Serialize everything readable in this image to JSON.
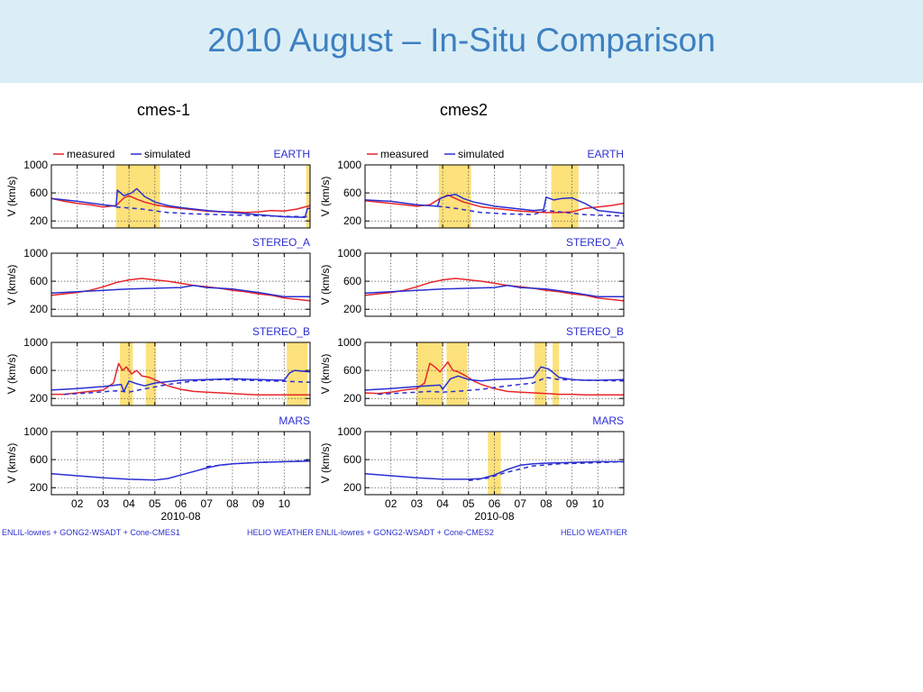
{
  "title": "2010 August – In-Situ Comparison",
  "columns": [
    {
      "heading": "cmes-1",
      "footer_left": "ENLIL-lowres + GONG2-WSADT + Cone-CMES1",
      "footer_right": "HELIO  WEATHER"
    },
    {
      "heading": "cmes2",
      "footer_left": "ENLIL-lowres + GONG2-WSADT + Cone-CMES2",
      "footer_right": "HELIO  WEATHER"
    }
  ],
  "legend": {
    "measured": "measured",
    "simulated": "simulated"
  },
  "colors": {
    "measured": "#e8262a",
    "simulated": "#2b2fd0",
    "highlight": "#fde17a",
    "label": "#2b2fd0"
  },
  "chart_data": [
    {
      "type": "line",
      "column": "cmes-1",
      "panel": "EARTH",
      "ylabel": "V (km/s)",
      "xlim": [
        1,
        11
      ],
      "ylim": [
        100,
        1000
      ],
      "yticks": [
        200,
        600,
        1000
      ],
      "xticks": [
        "02",
        "03",
        "04",
        "05",
        "06",
        "07",
        "08",
        "09",
        "10"
      ],
      "xlabel": "2010-08",
      "highlight_ranges": [
        [
          3.5,
          5.2
        ],
        [
          10.85,
          11.0
        ]
      ],
      "series": [
        {
          "name": "measured",
          "style": "solid",
          "x": [
            1,
            1.5,
            2,
            2.5,
            3,
            3.5,
            3.8,
            4,
            4.3,
            4.6,
            5,
            5.5,
            6,
            6.5,
            7,
            7.5,
            8,
            8.5,
            9,
            9.5,
            10,
            10.5,
            11
          ],
          "y": [
            520,
            480,
            450,
            430,
            400,
            420,
            530,
            560,
            510,
            470,
            430,
            400,
            380,
            360,
            340,
            330,
            330,
            320,
            330,
            350,
            340,
            370,
            420
          ]
        },
        {
          "name": "simulated",
          "style": "solid",
          "x": [
            1,
            2,
            3,
            3.5,
            3.55,
            3.8,
            4.1,
            4.3,
            4.6,
            5,
            5.5,
            6,
            7,
            8,
            9,
            10,
            10.8,
            10.9,
            11
          ],
          "y": [
            520,
            480,
            430,
            410,
            640,
            560,
            600,
            660,
            550,
            470,
            420,
            390,
            350,
            320,
            290,
            260,
            250,
            380,
            380
          ]
        },
        {
          "name": "simulated",
          "style": "dashed",
          "x": [
            3.5,
            4.5,
            5.5,
            6.5,
            7.5,
            8.5,
            9.5,
            11
          ],
          "y": [
            400,
            370,
            320,
            300,
            290,
            280,
            270,
            260
          ]
        }
      ]
    },
    {
      "type": "line",
      "column": "cmes-1",
      "panel": "STEREO_A",
      "ylabel": "V (km/s)",
      "xlim": [
        1,
        11
      ],
      "ylim": [
        100,
        1000
      ],
      "yticks": [
        200,
        600,
        1000
      ],
      "xticks": [
        "02",
        "03",
        "04",
        "05",
        "06",
        "07",
        "08",
        "09",
        "10"
      ],
      "xlabel": "2010-08",
      "highlight_ranges": [],
      "series": [
        {
          "name": "measured",
          "style": "solid",
          "x": [
            1,
            1.5,
            2,
            2.5,
            3,
            3.5,
            4,
            4.5,
            5,
            5.5,
            6,
            6.5,
            7,
            7.5,
            8,
            8.5,
            9,
            9.5,
            10,
            10.5,
            11
          ],
          "y": [
            400,
            420,
            440,
            470,
            520,
            580,
            620,
            640,
            620,
            600,
            570,
            540,
            520,
            500,
            470,
            450,
            420,
            400,
            360,
            340,
            320
          ]
        },
        {
          "name": "simulated",
          "style": "solid",
          "x": [
            1,
            2,
            3,
            4,
            5,
            6,
            6.5,
            7,
            8,
            9,
            10,
            11
          ],
          "y": [
            430,
            450,
            470,
            490,
            500,
            510,
            540,
            510,
            490,
            440,
            380,
            380
          ]
        }
      ]
    },
    {
      "type": "line",
      "column": "cmes-1",
      "panel": "STEREO_B",
      "ylabel": "V (km/s)",
      "xlim": [
        1,
        11
      ],
      "ylim": [
        100,
        1000
      ],
      "yticks": [
        200,
        600,
        1000
      ],
      "xticks": [
        "02",
        "03",
        "04",
        "05",
        "06",
        "07",
        "08",
        "09",
        "10"
      ],
      "xlabel": "2010-08",
      "highlight_ranges": [
        [
          3.65,
          4.15
        ],
        [
          4.65,
          5.05
        ],
        [
          10.1,
          10.9
        ]
      ],
      "series": [
        {
          "name": "measured",
          "style": "solid",
          "x": [
            1,
            1.5,
            2,
            2.5,
            3,
            3.4,
            3.6,
            3.75,
            3.9,
            4.1,
            4.3,
            4.5,
            4.8,
            5.1,
            5.5,
            6,
            6.5,
            7,
            7.5,
            8,
            8.5,
            9,
            9.5,
            10,
            10.5,
            11
          ],
          "y": [
            260,
            260,
            280,
            300,
            320,
            420,
            700,
            600,
            650,
            550,
            600,
            520,
            500,
            450,
            380,
            330,
            300,
            290,
            280,
            270,
            260,
            250,
            250,
            250,
            250,
            250
          ]
        },
        {
          "name": "simulated",
          "style": "solid",
          "x": [
            1,
            2,
            3,
            3.7,
            3.8,
            4,
            4.3,
            4.6,
            5,
            6,
            7,
            8,
            9,
            10,
            10.2,
            10.4,
            11
          ],
          "y": [
            320,
            340,
            370,
            400,
            300,
            450,
            410,
            380,
            420,
            460,
            470,
            480,
            470,
            460,
            560,
            600,
            580
          ]
        },
        {
          "name": "simulated",
          "style": "dashed",
          "x": [
            1.5,
            2.5,
            3.5,
            4,
            4.5,
            5.5,
            6.5,
            7.5,
            8.5,
            9.5,
            10.5,
            11
          ],
          "y": [
            260,
            280,
            310,
            290,
            330,
            400,
            450,
            470,
            460,
            450,
            440,
            430
          ]
        }
      ]
    },
    {
      "type": "line",
      "column": "cmes-1",
      "panel": "MARS",
      "ylabel": "V (km/s)",
      "xlim": [
        1,
        11
      ],
      "ylim": [
        100,
        1000
      ],
      "yticks": [
        200,
        600,
        1000
      ],
      "xticks": [
        "02",
        "03",
        "04",
        "05",
        "06",
        "07",
        "08",
        "09",
        "10"
      ],
      "xlabel": "2010-08",
      "highlight_ranges": [],
      "series": [
        {
          "name": "simulated",
          "style": "solid",
          "x": [
            1,
            2,
            3,
            4,
            5,
            5.5,
            6,
            6.5,
            7,
            7.5,
            8,
            8.5,
            9,
            10,
            11
          ],
          "y": [
            400,
            370,
            340,
            320,
            310,
            330,
            380,
            430,
            480,
            520,
            540,
            550,
            560,
            570,
            580
          ]
        },
        {
          "name": "simulated",
          "style": "dashed",
          "x": [
            7,
            8,
            9,
            10,
            11
          ],
          "y": [
            500,
            540,
            560,
            570,
            590
          ]
        }
      ]
    },
    {
      "type": "line",
      "column": "cmes2",
      "panel": "EARTH",
      "ylabel": "V (km/s)",
      "xlim": [
        1,
        11
      ],
      "ylim": [
        100,
        1000
      ],
      "yticks": [
        200,
        600,
        1000
      ],
      "xticks": [
        "02",
        "03",
        "04",
        "05",
        "06",
        "07",
        "08",
        "09",
        "10"
      ],
      "xlabel": "2010-08",
      "highlight_ranges": [
        [
          3.85,
          5.1
        ],
        [
          8.2,
          9.25
        ]
      ],
      "series": [
        {
          "name": "measured",
          "style": "solid",
          "x": [
            1,
            1.5,
            2,
            2.5,
            3,
            3.5,
            3.9,
            4.2,
            4.5,
            4.8,
            5.2,
            5.5,
            6,
            6.5,
            7,
            7.5,
            8,
            8.5,
            9,
            9.5,
            10,
            10.5,
            11
          ],
          "y": [
            490,
            470,
            450,
            430,
            410,
            430,
            520,
            570,
            520,
            470,
            430,
            400,
            380,
            360,
            340,
            330,
            320,
            320,
            330,
            380,
            400,
            420,
            450
          ]
        },
        {
          "name": "simulated",
          "style": "solid",
          "x": [
            1,
            2,
            3,
            3.8,
            3.9,
            4.2,
            4.5,
            4.8,
            5.2,
            6,
            7,
            7.5,
            7.9,
            8,
            8.3,
            8.6,
            9,
            9.5,
            10,
            11
          ],
          "y": [
            500,
            480,
            430,
            410,
            520,
            560,
            580,
            520,
            470,
            410,
            370,
            350,
            360,
            540,
            500,
            520,
            530,
            450,
            350,
            310
          ]
        },
        {
          "name": "simulated",
          "style": "dashed",
          "x": [
            3.8,
            4.5,
            5.5,
            6.5,
            7.5,
            8,
            8.5,
            9.5,
            11
          ],
          "y": [
            410,
            380,
            320,
            300,
            290,
            350,
            330,
            290,
            270
          ]
        }
      ]
    },
    {
      "type": "line",
      "column": "cmes2",
      "panel": "STEREO_A",
      "ylabel": "V (km/s)",
      "xlim": [
        1,
        11
      ],
      "ylim": [
        100,
        1000
      ],
      "yticks": [
        200,
        600,
        1000
      ],
      "xticks": [
        "02",
        "03",
        "04",
        "05",
        "06",
        "07",
        "08",
        "09",
        "10"
      ],
      "xlabel": "2010-08",
      "highlight_ranges": [],
      "series": [
        {
          "name": "measured",
          "style": "solid",
          "x": [
            1,
            1.5,
            2,
            2.5,
            3,
            3.5,
            4,
            4.5,
            5,
            5.5,
            6,
            6.5,
            7,
            7.5,
            8,
            8.5,
            9,
            9.5,
            10,
            10.5,
            11
          ],
          "y": [
            400,
            420,
            440,
            470,
            520,
            580,
            620,
            640,
            620,
            600,
            570,
            540,
            520,
            500,
            470,
            450,
            420,
            400,
            360,
            340,
            320
          ]
        },
        {
          "name": "simulated",
          "style": "solid",
          "x": [
            1,
            2,
            3,
            4,
            5,
            6,
            6.5,
            7,
            8,
            9,
            10,
            11
          ],
          "y": [
            430,
            450,
            470,
            490,
            500,
            510,
            540,
            510,
            490,
            440,
            380,
            380
          ]
        }
      ]
    },
    {
      "type": "line",
      "column": "cmes2",
      "panel": "STEREO_B",
      "ylabel": "V (km/s)",
      "xlim": [
        1,
        11
      ],
      "ylim": [
        100,
        1000
      ],
      "yticks": [
        200,
        600,
        1000
      ],
      "xticks": [
        "02",
        "03",
        "04",
        "05",
        "06",
        "07",
        "08",
        "09",
        "10"
      ],
      "xlabel": "2010-08",
      "highlight_ranges": [
        [
          3.0,
          4.0
        ],
        [
          4.15,
          4.95
        ],
        [
          7.55,
          8.0
        ],
        [
          8.25,
          8.5
        ]
      ],
      "series": [
        {
          "name": "measured",
          "style": "solid",
          "x": [
            1,
            1.5,
            2,
            2.5,
            3,
            3.3,
            3.5,
            3.7,
            3.9,
            4.2,
            4.4,
            4.6,
            4.9,
            5.2,
            5.5,
            6,
            6.5,
            7,
            7.5,
            8,
            8.5,
            9,
            9.5,
            10,
            10.5,
            11
          ],
          "y": [
            280,
            270,
            290,
            320,
            340,
            420,
            700,
            650,
            580,
            720,
            600,
            580,
            520,
            450,
            400,
            340,
            300,
            290,
            280,
            270,
            260,
            260,
            250,
            250,
            250,
            250
          ]
        },
        {
          "name": "simulated",
          "style": "solid",
          "x": [
            1,
            2,
            3,
            3.9,
            4,
            4.3,
            4.6,
            5,
            5.5,
            6,
            7,
            7.5,
            7.8,
            8.1,
            8.5,
            9,
            9.5,
            10,
            11
          ],
          "y": [
            320,
            340,
            370,
            390,
            330,
            480,
            520,
            470,
            450,
            470,
            480,
            500,
            650,
            620,
            500,
            470,
            460,
            460,
            470
          ]
        },
        {
          "name": "simulated",
          "style": "dashed",
          "x": [
            1.5,
            2.5,
            3.5,
            4,
            4.5,
            5.5,
            6.5,
            7.5,
            8,
            8.5,
            9.5,
            11
          ],
          "y": [
            260,
            280,
            300,
            290,
            300,
            330,
            380,
            420,
            500,
            470,
            460,
            450
          ]
        }
      ]
    },
    {
      "type": "line",
      "column": "cmes2",
      "panel": "MARS",
      "ylabel": "V (km/s)",
      "xlim": [
        1,
        11
      ],
      "ylim": [
        100,
        1000
      ],
      "yticks": [
        200,
        600,
        1000
      ],
      "xticks": [
        "02",
        "03",
        "04",
        "05",
        "06",
        "07",
        "08",
        "09",
        "10"
      ],
      "xlabel": "2010-08",
      "highlight_ranges": [
        [
          5.75,
          6.25
        ]
      ],
      "series": [
        {
          "name": "simulated",
          "style": "solid",
          "x": [
            1,
            2,
            3,
            4,
            5,
            5.5,
            6,
            6.5,
            7,
            7.5,
            8,
            8.5,
            9,
            10,
            11
          ],
          "y": [
            400,
            370,
            340,
            320,
            320,
            330,
            380,
            460,
            520,
            540,
            550,
            555,
            560,
            570,
            570
          ]
        },
        {
          "name": "simulated",
          "style": "dashed",
          "x": [
            5,
            5.8,
            6.2,
            6.8,
            7.5,
            8.5,
            9.5,
            11
          ],
          "y": [
            300,
            340,
            390,
            450,
            510,
            540,
            550,
            570
          ]
        }
      ]
    }
  ]
}
